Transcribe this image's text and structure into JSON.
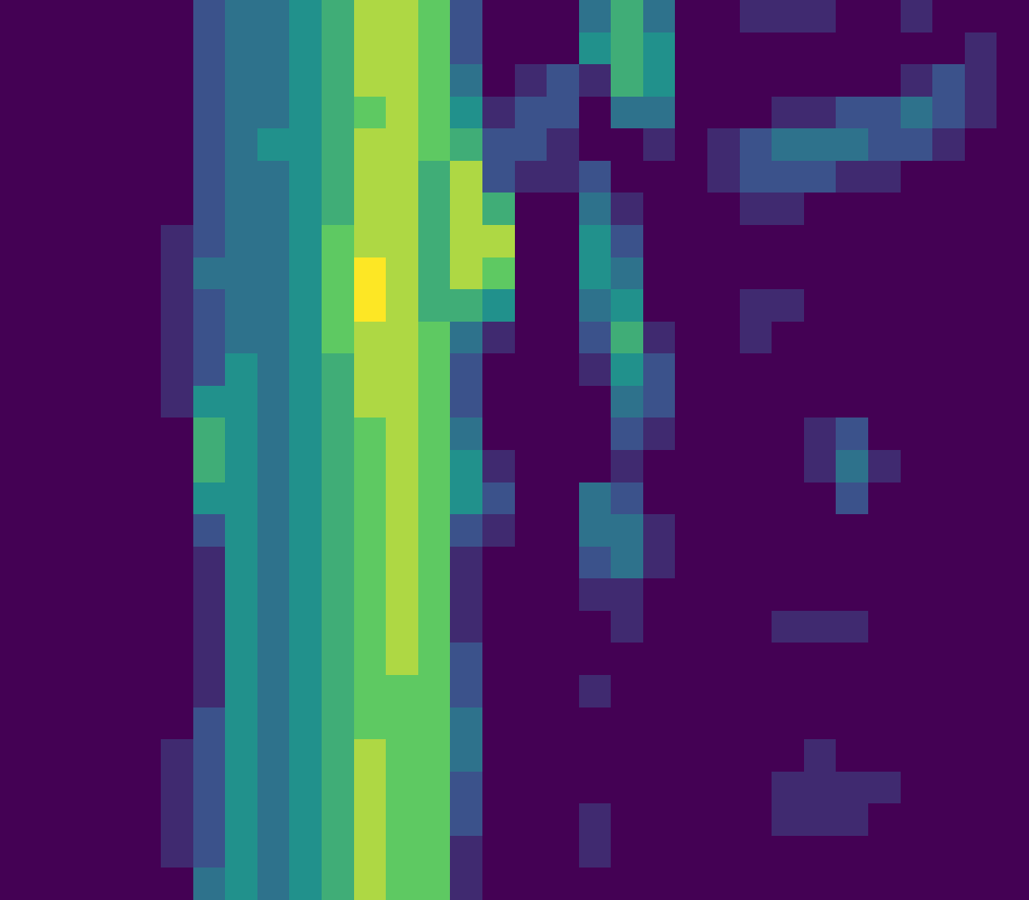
{
  "chart_data": {
    "type": "heatmap",
    "tick_labels": false,
    "zlim": [
      1,
      9
    ],
    "z": [
      [
        1,
        1,
        1,
        1,
        1,
        1,
        3,
        4,
        4,
        5,
        6,
        8,
        8,
        7,
        3,
        1,
        1,
        1,
        4,
        6,
        4,
        1,
        1,
        2,
        2,
        2,
        1,
        1,
        2,
        1,
        1,
        1
      ],
      [
        1,
        1,
        1,
        1,
        1,
        1,
        3,
        4,
        4,
        5,
        6,
        8,
        8,
        7,
        3,
        1,
        1,
        1,
        5,
        6,
        5,
        1,
        1,
        1,
        1,
        1,
        1,
        1,
        1,
        1,
        2,
        1
      ],
      [
        1,
        1,
        1,
        1,
        1,
        1,
        3,
        4,
        4,
        5,
        6,
        8,
        8,
        7,
        4,
        1,
        2,
        3,
        2,
        6,
        5,
        1,
        1,
        1,
        1,
        1,
        1,
        1,
        2,
        3,
        2,
        1
      ],
      [
        1,
        1,
        1,
        1,
        1,
        1,
        3,
        4,
        4,
        5,
        6,
        7,
        8,
        7,
        5,
        2,
        3,
        3,
        1,
        4,
        4,
        1,
        1,
        1,
        2,
        2,
        3,
        3,
        4,
        3,
        2,
        1
      ],
      [
        1,
        1,
        1,
        1,
        1,
        1,
        3,
        4,
        5,
        5,
        6,
        8,
        8,
        7,
        6,
        3,
        3,
        2,
        1,
        1,
        2,
        1,
        2,
        3,
        4,
        4,
        4,
        3,
        3,
        2,
        1,
        1
      ],
      [
        1,
        1,
        1,
        1,
        1,
        1,
        3,
        4,
        4,
        5,
        6,
        8,
        8,
        6,
        8,
        3,
        2,
        2,
        3,
        1,
        1,
        1,
        2,
        3,
        3,
        3,
        2,
        2,
        1,
        1,
        1,
        1
      ],
      [
        1,
        1,
        1,
        1,
        1,
        1,
        3,
        4,
        4,
        5,
        6,
        8,
        8,
        6,
        8,
        6,
        1,
        1,
        4,
        2,
        1,
        1,
        1,
        2,
        2,
        1,
        1,
        1,
        1,
        1,
        1,
        1
      ],
      [
        1,
        1,
        1,
        1,
        1,
        2,
        3,
        4,
        4,
        5,
        7,
        8,
        8,
        6,
        8,
        8,
        1,
        1,
        5,
        3,
        1,
        1,
        1,
        1,
        1,
        1,
        1,
        1,
        1,
        1,
        1,
        1
      ],
      [
        1,
        1,
        1,
        1,
        1,
        2,
        4,
        4,
        4,
        5,
        7,
        9,
        8,
        6,
        8,
        7,
        1,
        1,
        5,
        4,
        1,
        1,
        1,
        1,
        1,
        1,
        1,
        1,
        1,
        1,
        1,
        1
      ],
      [
        1,
        1,
        1,
        1,
        1,
        2,
        3,
        4,
        4,
        5,
        7,
        9,
        8,
        6,
        6,
        5,
        1,
        1,
        4,
        5,
        1,
        1,
        1,
        2,
        2,
        1,
        1,
        1,
        1,
        1,
        1,
        1
      ],
      [
        1,
        1,
        1,
        1,
        1,
        2,
        3,
        4,
        4,
        5,
        7,
        8,
        8,
        7,
        4,
        2,
        1,
        1,
        3,
        6,
        2,
        1,
        1,
        2,
        1,
        1,
        1,
        1,
        1,
        1,
        1,
        1
      ],
      [
        1,
        1,
        1,
        1,
        1,
        2,
        3,
        5,
        4,
        5,
        6,
        8,
        8,
        7,
        3,
        1,
        1,
        1,
        2,
        5,
        3,
        1,
        1,
        1,
        1,
        1,
        1,
        1,
        1,
        1,
        1,
        1
      ],
      [
        1,
        1,
        1,
        1,
        1,
        2,
        5,
        5,
        4,
        5,
        6,
        8,
        8,
        7,
        3,
        1,
        1,
        1,
        1,
        4,
        3,
        1,
        1,
        1,
        1,
        1,
        1,
        1,
        1,
        1,
        1,
        1
      ],
      [
        1,
        1,
        1,
        1,
        1,
        1,
        6,
        5,
        4,
        5,
        6,
        7,
        8,
        7,
        4,
        1,
        1,
        1,
        1,
        3,
        2,
        1,
        1,
        1,
        1,
        2,
        3,
        1,
        1,
        1,
        1,
        1
      ],
      [
        1,
        1,
        1,
        1,
        1,
        1,
        6,
        5,
        4,
        5,
        6,
        7,
        8,
        7,
        5,
        2,
        1,
        1,
        1,
        2,
        1,
        1,
        1,
        1,
        1,
        2,
        4,
        2,
        1,
        1,
        1,
        1
      ],
      [
        1,
        1,
        1,
        1,
        1,
        1,
        5,
        5,
        4,
        5,
        6,
        7,
        8,
        7,
        5,
        3,
        1,
        1,
        4,
        3,
        1,
        1,
        1,
        1,
        1,
        1,
        3,
        1,
        1,
        1,
        1,
        1
      ],
      [
        1,
        1,
        1,
        1,
        1,
        1,
        3,
        5,
        4,
        5,
        6,
        7,
        8,
        7,
        3,
        2,
        1,
        1,
        4,
        4,
        2,
        1,
        1,
        1,
        1,
        1,
        1,
        1,
        1,
        1,
        1,
        1
      ],
      [
        1,
        1,
        1,
        1,
        1,
        1,
        2,
        5,
        4,
        5,
        6,
        7,
        8,
        7,
        2,
        1,
        1,
        1,
        3,
        4,
        2,
        1,
        1,
        1,
        1,
        1,
        1,
        1,
        1,
        1,
        1,
        1
      ],
      [
        1,
        1,
        1,
        1,
        1,
        1,
        2,
        5,
        4,
        5,
        6,
        7,
        8,
        7,
        2,
        1,
        1,
        1,
        2,
        2,
        1,
        1,
        1,
        1,
        1,
        1,
        1,
        1,
        1,
        1,
        1,
        1
      ],
      [
        1,
        1,
        1,
        1,
        1,
        1,
        2,
        5,
        4,
        5,
        6,
        7,
        8,
        7,
        2,
        1,
        1,
        1,
        1,
        2,
        1,
        1,
        1,
        1,
        2,
        2,
        2,
        1,
        1,
        1,
        1,
        1
      ],
      [
        1,
        1,
        1,
        1,
        1,
        1,
        2,
        5,
        4,
        5,
        6,
        7,
        8,
        7,
        3,
        1,
        1,
        1,
        1,
        1,
        1,
        1,
        1,
        1,
        1,
        1,
        1,
        1,
        1,
        1,
        1,
        1
      ],
      [
        1,
        1,
        1,
        1,
        1,
        1,
        2,
        5,
        4,
        5,
        6,
        7,
        7,
        7,
        3,
        1,
        1,
        1,
        2,
        1,
        1,
        1,
        1,
        1,
        1,
        1,
        1,
        1,
        1,
        1,
        1,
        1
      ],
      [
        1,
        1,
        1,
        1,
        1,
        1,
        3,
        5,
        4,
        5,
        6,
        7,
        7,
        7,
        4,
        1,
        1,
        1,
        1,
        1,
        1,
        1,
        1,
        1,
        1,
        1,
        1,
        1,
        1,
        1,
        1,
        1
      ],
      [
        1,
        1,
        1,
        1,
        1,
        2,
        3,
        5,
        4,
        5,
        6,
        8,
        7,
        7,
        4,
        1,
        1,
        1,
        1,
        1,
        1,
        1,
        1,
        1,
        1,
        2,
        1,
        1,
        1,
        1,
        1,
        1
      ],
      [
        1,
        1,
        1,
        1,
        1,
        2,
        3,
        5,
        4,
        5,
        6,
        8,
        7,
        7,
        3,
        1,
        1,
        1,
        1,
        1,
        1,
        1,
        1,
        1,
        2,
        2,
        2,
        2,
        1,
        1,
        1,
        1
      ],
      [
        1,
        1,
        1,
        1,
        1,
        2,
        3,
        5,
        4,
        5,
        6,
        8,
        7,
        7,
        3,
        1,
        1,
        1,
        2,
        1,
        1,
        1,
        1,
        1,
        2,
        2,
        2,
        1,
        1,
        1,
        1,
        1
      ],
      [
        1,
        1,
        1,
        1,
        1,
        2,
        3,
        5,
        4,
        5,
        6,
        8,
        7,
        7,
        2,
        1,
        1,
        1,
        2,
        1,
        1,
        1,
        1,
        1,
        1,
        1,
        1,
        1,
        1,
        1,
        1,
        1
      ],
      [
        1,
        1,
        1,
        1,
        1,
        1,
        4,
        5,
        4,
        5,
        6,
        8,
        7,
        7,
        2,
        1,
        1,
        1,
        1,
        1,
        1,
        1,
        1,
        1,
        1,
        1,
        1,
        1,
        1,
        1,
        1,
        1
      ]
    ]
  }
}
